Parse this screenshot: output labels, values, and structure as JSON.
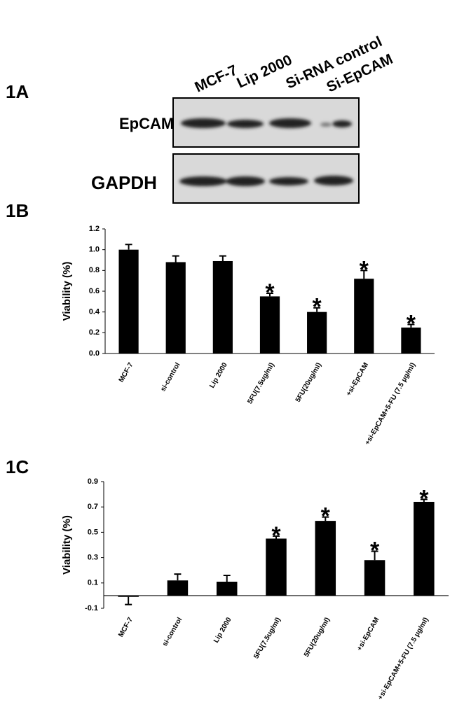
{
  "figure": {
    "panel_a": {
      "label": "1A",
      "lanes": [
        "MCF-7",
        "Lip 2000",
        "Si-RNA control",
        "Si-EpCAM"
      ],
      "rows": [
        "EpCAM",
        "GAPDH"
      ]
    },
    "panel_b": {
      "label": "1B"
    },
    "panel_c": {
      "label": "1C"
    }
  },
  "chart_data": [
    {
      "type": "bar",
      "y_label": "Viability (%)",
      "color": "#000000",
      "categories": [
        "MCF-7",
        "si-control",
        "Lip 2000",
        "5FU(7.5ug/ml)",
        "5FU(20ug/ml)",
        "+si-EpCAM",
        "+si-EpCAM+5-FU (7.5 μg/ml)"
      ],
      "values": [
        1.0,
        0.88,
        0.89,
        0.55,
        0.4,
        0.72,
        0.25
      ],
      "errors": [
        0.05,
        0.06,
        0.05,
        0.03,
        0.04,
        0.08,
        0.03
      ],
      "annotations": [
        {
          "category": "5FU(7.5ug/ml)",
          "text": "*"
        },
        {
          "category": "5FU(20ug/ml)",
          "text": "*"
        },
        {
          "category": "+si-EpCAM",
          "text": "*"
        },
        {
          "category": "+si-EpCAM+5-FU (7.5 μg/ml)",
          "text": "*"
        }
      ],
      "ylim": [
        0,
        1.2
      ],
      "yticks": [
        {
          "value": 0,
          "label": "0.0"
        },
        0.2,
        0.4,
        0.6,
        0.8,
        {
          "value": 1,
          "label": "1.0"
        },
        1.2
      ]
    },
    {
      "type": "bar",
      "y_label": "Viability (%)",
      "color": "#000000",
      "categories": [
        "MCF-7",
        "si-control",
        "Lip 2000",
        "5FU(7.5ug/ml)",
        "5FU(20ug/ml)",
        "+si-EpCAM",
        "+si-EpCAM+5-FU (7.5 μg/ml)"
      ],
      "values": [
        -0.01,
        0.12,
        0.11,
        0.45,
        0.59,
        0.28,
        0.74
      ],
      "errors": [
        0.06,
        0.05,
        0.05,
        0.02,
        0.03,
        0.07,
        0.02
      ],
      "annotations": [
        {
          "category": "5FU(7.5ug/ml)",
          "text": "*"
        },
        {
          "category": "5FU(20ug/ml)",
          "text": "*"
        },
        {
          "category": "+si-EpCAM",
          "text": "*"
        },
        {
          "category": "+si-EpCAM+5-FU (7.5 μg/ml)",
          "text": "*"
        }
      ],
      "ylim": [
        -0.1,
        0.9
      ],
      "yticks": [
        -0.1,
        0.1,
        0.3,
        0.5,
        0.7,
        0.9
      ]
    }
  ]
}
